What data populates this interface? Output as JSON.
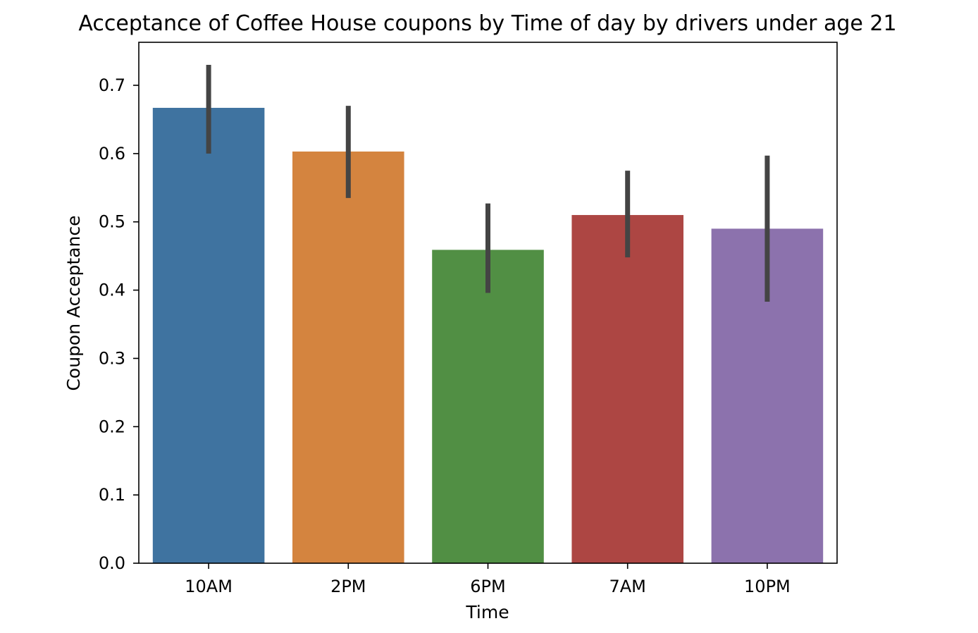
{
  "chart_data": {
    "type": "bar",
    "title": "Acceptance of Coffee House coupons by Time of day by drivers under age 21",
    "xlabel": "Time",
    "ylabel": "Coupon Acceptance",
    "categories": [
      "10AM",
      "2PM",
      "6PM",
      "7AM",
      "10PM"
    ],
    "values": [
      0.667,
      0.603,
      0.459,
      0.51,
      0.49
    ],
    "error_bars": [
      {
        "low": 0.6,
        "high": 0.73
      },
      {
        "low": 0.535,
        "high": 0.67
      },
      {
        "low": 0.396,
        "high": 0.527
      },
      {
        "low": 0.448,
        "high": 0.575
      },
      {
        "low": 0.383,
        "high": 0.597
      }
    ],
    "colors": [
      "#3f73a0",
      "#d4843f",
      "#518f44",
      "#ad4643",
      "#8c72ad"
    ],
    "error_color": "#444444",
    "ylim": [
      0,
      0.763
    ],
    "yticks": [
      0.0,
      0.1,
      0.2,
      0.3,
      0.4,
      0.5,
      0.6,
      0.7
    ],
    "ytick_labels": [
      "0.0",
      "0.1",
      "0.2",
      "0.3",
      "0.4",
      "0.5",
      "0.6",
      "0.7"
    ],
    "grid": false,
    "legend": "none"
  }
}
